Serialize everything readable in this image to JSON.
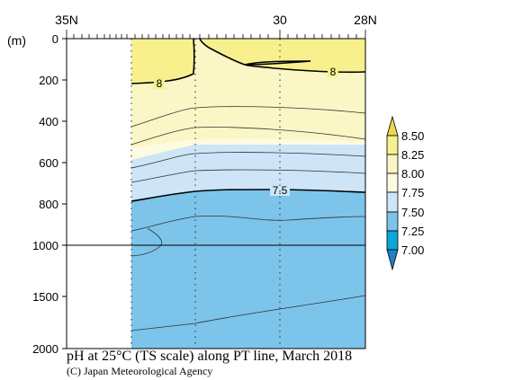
{
  "chart_data": {
    "type": "heatmap",
    "title": "pH at 25°C (TS scale) along PT line, March 2018",
    "credit": "(C) Japan Meteorological Agency",
    "ylabel": "(m)",
    "x_top_labels": [
      "35N",
      "30",
      "28N"
    ],
    "y_ticks": [
      "0",
      "200",
      "400",
      "600",
      "800",
      "1000",
      "1500",
      "2000"
    ],
    "colorbar": {
      "levels": [
        "8.50",
        "8.25",
        "8.00",
        "7.75",
        "7.50",
        "7.25",
        "7.00"
      ],
      "colors": [
        "#eed84a",
        "#f7f08d",
        "#fbf6c6",
        "#fdfbe0",
        "#cde5f6",
        "#7dc4ea",
        "#0aa8d8",
        "#1e80c8"
      ]
    },
    "contour_labels": [
      {
        "text": "8",
        "value": 8.0
      },
      {
        "text": "8",
        "value": 8.0
      },
      {
        "text": "7.5",
        "value": 7.5
      }
    ],
    "layers": [
      {
        "range": "> 8.00",
        "color": "#f7f08d",
        "depth_m": "0–200"
      },
      {
        "range": "7.75–8.00",
        "color": "#fdfbe0",
        "depth_m": "200–550"
      },
      {
        "range": "7.50–7.75",
        "color": "#cde5f6",
        "depth_m": "550–780"
      },
      {
        "range": "7.25–7.50",
        "color": "#7dc4ea",
        "depth_m": "780–2000"
      }
    ]
  }
}
